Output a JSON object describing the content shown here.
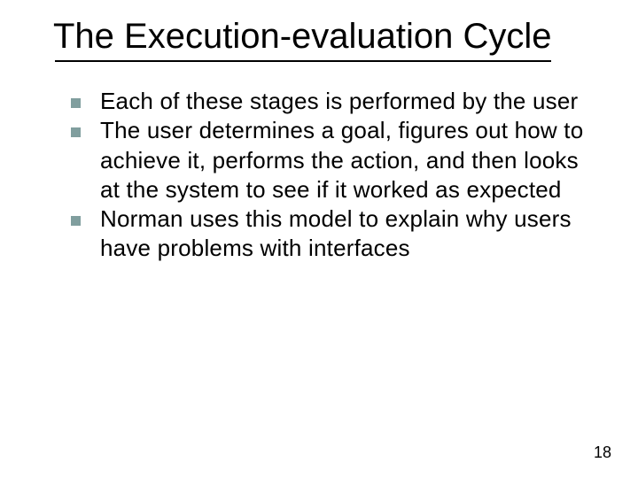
{
  "slide": {
    "title": "The Execution-evaluation Cycle",
    "title_fontsize": 40,
    "title_color": "#000000",
    "underline_color": "#000000",
    "underline_width": 560,
    "bullets": [
      {
        "text": "Each of these stages is performed by the user"
      },
      {
        "text": "The user determines a goal, figures out how to achieve it, performs the action, and then looks at the system to see if it worked as expected"
      },
      {
        "text": "Norman uses this model to explain why users have problems with interfaces"
      }
    ],
    "bullet_marker_color": "#809e9e",
    "bullet_marker_size": 11,
    "bullet_fontsize": 26,
    "bullet_text_color": "#000000",
    "background_color": "#ffffff",
    "page_number": "18",
    "page_number_fontsize": 18
  }
}
